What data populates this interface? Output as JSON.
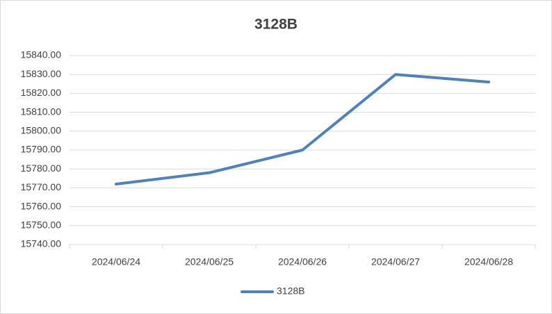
{
  "chart_data": {
    "type": "line",
    "title": "3128B",
    "categories": [
      "2024/06/24",
      "2024/06/25",
      "2024/06/26",
      "2024/06/27",
      "2024/06/28"
    ],
    "series": [
      {
        "name": "3128B",
        "color": "#4f81bd",
        "values": [
          15772,
          15778,
          15790,
          15830,
          15826
        ]
      }
    ],
    "ylim": [
      15740,
      15840
    ],
    "yticks": [
      {
        "value": 15740,
        "label": "15740.00"
      },
      {
        "value": 15750,
        "label": "15750.00"
      },
      {
        "value": 15760,
        "label": "15760.00"
      },
      {
        "value": 15770,
        "label": "15770.00"
      },
      {
        "value": 15780,
        "label": "15780.00"
      },
      {
        "value": 15790,
        "label": "15790.00"
      },
      {
        "value": 15800,
        "label": "15800.00"
      },
      {
        "value": 15810,
        "label": "15810.00"
      },
      {
        "value": 15820,
        "label": "15820.00"
      },
      {
        "value": 15830,
        "label": "15830.00"
      },
      {
        "value": 15840,
        "label": "15840.00"
      }
    ],
    "grid": true,
    "legend": "bottom"
  }
}
